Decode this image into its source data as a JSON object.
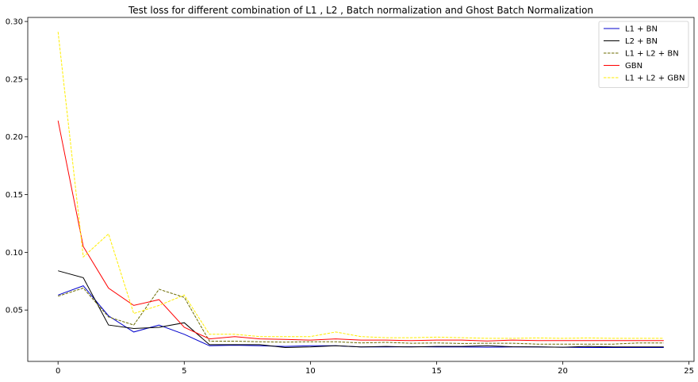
{
  "chart_data": {
    "type": "line",
    "title": "Test loss for different combination of L1 , L2 , Batch normalization and Ghost Batch Normalization",
    "xlabel": "",
    "ylabel": "",
    "xlim": [
      -1.2,
      25.2
    ],
    "ylim": [
      0.0055,
      0.3035
    ],
    "x_ticks": [
      0,
      5,
      10,
      15,
      20,
      25
    ],
    "y_ticks": [
      0.05,
      0.1,
      0.15,
      0.2,
      0.25,
      0.3
    ],
    "y_tick_labels": [
      "0.05",
      "0.10",
      "0.15",
      "0.20",
      "0.25",
      "0.30"
    ],
    "grid": false,
    "legend_position": "top-right",
    "x": [
      0,
      1,
      2,
      3,
      4,
      5,
      6,
      7,
      8,
      9,
      10,
      11,
      12,
      13,
      14,
      15,
      16,
      17,
      18,
      19,
      20,
      21,
      22,
      23,
      24
    ],
    "series": [
      {
        "name": "L1 + BN",
        "color": "#0000cc",
        "dash": "solid",
        "values": [
          0.063,
          0.071,
          0.045,
          0.031,
          0.037,
          0.029,
          0.019,
          0.0195,
          0.019,
          0.0185,
          0.019,
          0.019,
          0.018,
          0.018,
          0.0182,
          0.018,
          0.018,
          0.0178,
          0.018,
          0.018,
          0.0178,
          0.0175,
          0.0175,
          0.0175,
          0.0175
        ]
      },
      {
        "name": "L2 + BN",
        "color": "#000000",
        "dash": "solid",
        "values": [
          0.084,
          0.078,
          0.037,
          0.034,
          0.035,
          0.039,
          0.02,
          0.02,
          0.02,
          0.0175,
          0.018,
          0.019,
          0.018,
          0.0185,
          0.018,
          0.0185,
          0.0185,
          0.019,
          0.0182,
          0.018,
          0.0178,
          0.0185,
          0.018,
          0.018,
          0.018
        ]
      },
      {
        "name": "L1 + L2 + BN",
        "color": "#6b6b00",
        "dash": "dashed",
        "values": [
          0.062,
          0.069,
          0.044,
          0.037,
          0.068,
          0.061,
          0.023,
          0.023,
          0.0225,
          0.0222,
          0.0225,
          0.0225,
          0.0215,
          0.022,
          0.0212,
          0.0215,
          0.021,
          0.0212,
          0.0212,
          0.0205,
          0.0205,
          0.0205,
          0.0205,
          0.0215,
          0.0215
        ]
      },
      {
        "name": "GBN",
        "color": "#ff0000",
        "dash": "solid",
        "values": [
          0.214,
          0.105,
          0.069,
          0.054,
          0.059,
          0.035,
          0.025,
          0.027,
          0.025,
          0.0245,
          0.024,
          0.025,
          0.024,
          0.024,
          0.0235,
          0.024,
          0.024,
          0.0232,
          0.024,
          0.0235,
          0.0235,
          0.0235,
          0.0235,
          0.0235,
          0.0235
        ]
      },
      {
        "name": "L1 + L2 + GBN",
        "color": "#ffee00",
        "dash": "dashed",
        "values": [
          0.291,
          0.096,
          0.116,
          0.047,
          0.054,
          0.063,
          0.029,
          0.029,
          0.027,
          0.027,
          0.027,
          0.031,
          0.027,
          0.026,
          0.026,
          0.0265,
          0.026,
          0.0255,
          0.0255,
          0.0258,
          0.0255,
          0.0258,
          0.0255,
          0.0255,
          0.0255
        ]
      }
    ]
  }
}
